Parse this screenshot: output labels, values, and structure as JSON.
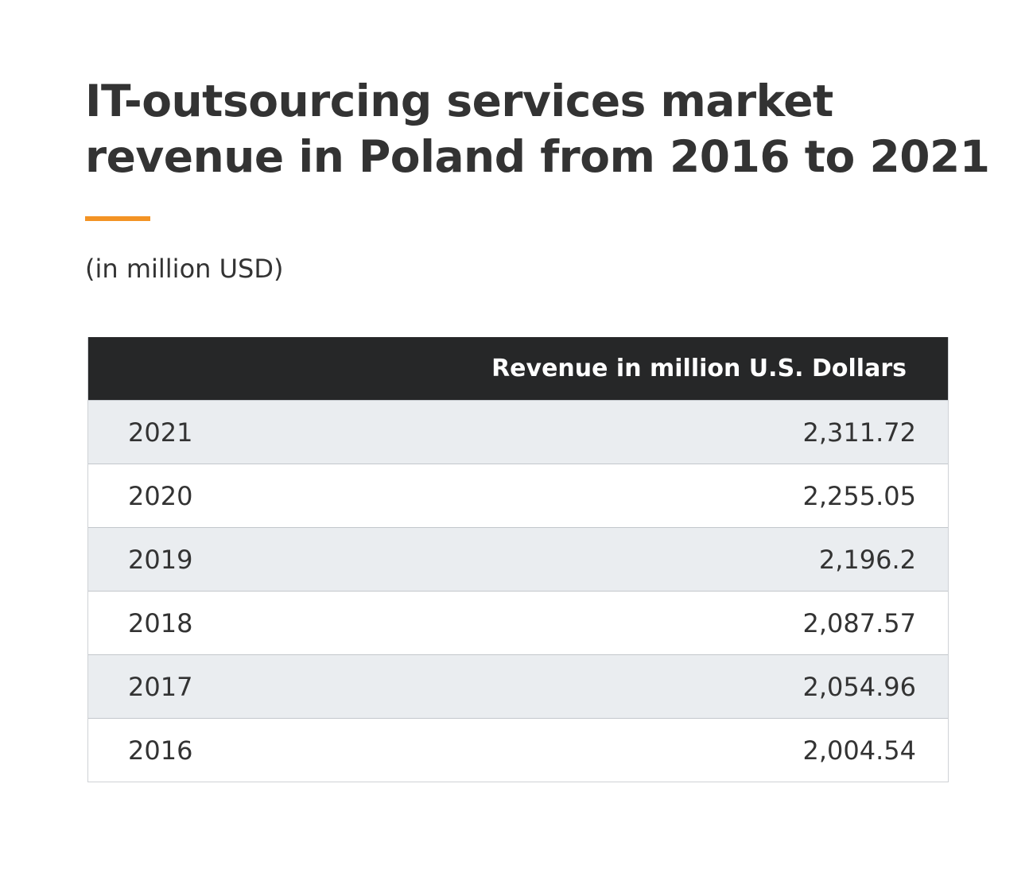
{
  "title": "IT-outsourcing services market revenue in Poland from 2016 to 2021",
  "subtitle": "(in million USD)",
  "colors": {
    "accent": "#f39324",
    "header_bg": "#262728",
    "shaded_row": "#eaedf0",
    "text": "#333333"
  },
  "chart_data": {
    "type": "table",
    "title": "IT-outsourcing services market revenue in Poland from 2016 to 2021",
    "subtitle": "(in million USD)",
    "columns": [
      "",
      "Revenue in million U.S. Dollars"
    ],
    "rows": [
      {
        "year": "2021",
        "value": "2,311.72"
      },
      {
        "year": "2020",
        "value": "2,255.05"
      },
      {
        "year": "2019",
        "value": "2,196.2"
      },
      {
        "year": "2018",
        "value": "2,087.57"
      },
      {
        "year": "2017",
        "value": "2,054.96"
      },
      {
        "year": "2016",
        "value": "2,004.54"
      }
    ]
  }
}
